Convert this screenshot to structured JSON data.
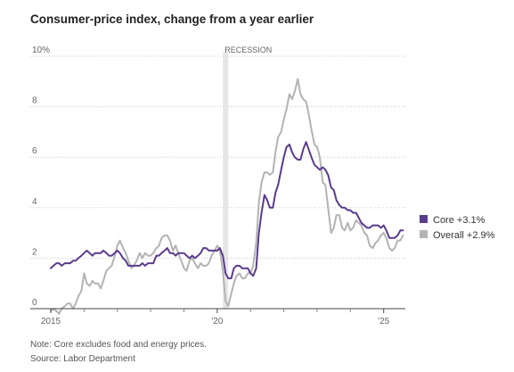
{
  "chart_data": {
    "type": "line",
    "title": "Consumer-price index, change from a year earlier",
    "xlabel": "",
    "ylabel": "",
    "xlim": [
      2015,
      2025.65
    ],
    "ylim": [
      0,
      10
    ],
    "y_ticks": [
      {
        "value": 10,
        "label": "10%"
      },
      {
        "value": 8,
        "label": "8"
      },
      {
        "value": 6,
        "label": "6"
      },
      {
        "value": 4,
        "label": "4"
      },
      {
        "value": 2,
        "label": "2"
      },
      {
        "value": 0,
        "label": "0"
      }
    ],
    "x_tick_labels": [
      {
        "value": 2015,
        "label": "2015"
      },
      {
        "value": 2020,
        "label": "'20"
      },
      {
        "value": 2025,
        "label": "'25"
      }
    ],
    "x_minor_ticks": [
      2016,
      2017,
      2018,
      2019,
      2021,
      2022,
      2023,
      2024
    ],
    "recession": {
      "label": "RECESSION",
      "start": 2020.17,
      "end": 2020.33
    },
    "grid": true,
    "legend_position": "right",
    "series": [
      {
        "name": "Core",
        "legend_label": "Core +3.1%",
        "color": "#5b3b8c",
        "points": [
          [
            2015.0,
            1.6
          ],
          [
            2015.08,
            1.7
          ],
          [
            2015.17,
            1.8
          ],
          [
            2015.25,
            1.8
          ],
          [
            2015.33,
            1.7
          ],
          [
            2015.42,
            1.8
          ],
          [
            2015.5,
            1.8
          ],
          [
            2015.58,
            1.8
          ],
          [
            2015.67,
            1.9
          ],
          [
            2015.75,
            1.9
          ],
          [
            2015.83,
            2.0
          ],
          [
            2015.92,
            2.1
          ],
          [
            2016.0,
            2.2
          ],
          [
            2016.08,
            2.3
          ],
          [
            2016.17,
            2.2
          ],
          [
            2016.25,
            2.1
          ],
          [
            2016.33,
            2.2
          ],
          [
            2016.42,
            2.2
          ],
          [
            2016.5,
            2.2
          ],
          [
            2016.58,
            2.3
          ],
          [
            2016.67,
            2.2
          ],
          [
            2016.75,
            2.1
          ],
          [
            2016.83,
            2.1
          ],
          [
            2016.92,
            2.2
          ],
          [
            2017.0,
            2.3
          ],
          [
            2017.08,
            2.2
          ],
          [
            2017.17,
            2.0
          ],
          [
            2017.25,
            1.9
          ],
          [
            2017.33,
            1.7
          ],
          [
            2017.42,
            1.7
          ],
          [
            2017.5,
            1.7
          ],
          [
            2017.58,
            1.7
          ],
          [
            2017.67,
            1.7
          ],
          [
            2017.75,
            1.8
          ],
          [
            2017.83,
            1.7
          ],
          [
            2017.92,
            1.8
          ],
          [
            2018.0,
            1.8
          ],
          [
            2018.08,
            1.8
          ],
          [
            2018.17,
            2.1
          ],
          [
            2018.25,
            2.1
          ],
          [
            2018.33,
            2.2
          ],
          [
            2018.42,
            2.3
          ],
          [
            2018.5,
            2.4
          ],
          [
            2018.58,
            2.2
          ],
          [
            2018.67,
            2.2
          ],
          [
            2018.75,
            2.1
          ],
          [
            2018.83,
            2.2
          ],
          [
            2018.92,
            2.2
          ],
          [
            2019.0,
            2.2
          ],
          [
            2019.08,
            2.1
          ],
          [
            2019.17,
            2.0
          ],
          [
            2019.25,
            2.1
          ],
          [
            2019.33,
            2.0
          ],
          [
            2019.42,
            2.1
          ],
          [
            2019.5,
            2.2
          ],
          [
            2019.58,
            2.4
          ],
          [
            2019.67,
            2.4
          ],
          [
            2019.75,
            2.3
          ],
          [
            2019.83,
            2.3
          ],
          [
            2019.92,
            2.3
          ],
          [
            2020.0,
            2.3
          ],
          [
            2020.08,
            2.4
          ],
          [
            2020.17,
            2.1
          ],
          [
            2020.25,
            1.4
          ],
          [
            2020.33,
            1.2
          ],
          [
            2020.42,
            1.2
          ],
          [
            2020.5,
            1.6
          ],
          [
            2020.58,
            1.7
          ],
          [
            2020.67,
            1.7
          ],
          [
            2020.75,
            1.6
          ],
          [
            2020.83,
            1.6
          ],
          [
            2020.92,
            1.6
          ],
          [
            2021.0,
            1.4
          ],
          [
            2021.08,
            1.3
          ],
          [
            2021.17,
            1.6
          ],
          [
            2021.25,
            3.0
          ],
          [
            2021.33,
            3.8
          ],
          [
            2021.42,
            4.5
          ],
          [
            2021.5,
            4.3
          ],
          [
            2021.58,
            4.0
          ],
          [
            2021.67,
            4.0
          ],
          [
            2021.75,
            4.6
          ],
          [
            2021.83,
            4.9
          ],
          [
            2021.92,
            5.5
          ],
          [
            2022.0,
            6.0
          ],
          [
            2022.08,
            6.4
          ],
          [
            2022.17,
            6.5
          ],
          [
            2022.25,
            6.2
          ],
          [
            2022.33,
            6.0
          ],
          [
            2022.42,
            5.9
          ],
          [
            2022.5,
            5.9
          ],
          [
            2022.58,
            6.3
          ],
          [
            2022.67,
            6.6
          ],
          [
            2022.75,
            6.3
          ],
          [
            2022.83,
            6.0
          ],
          [
            2022.92,
            5.7
          ],
          [
            2023.0,
            5.6
          ],
          [
            2023.08,
            5.5
          ],
          [
            2023.17,
            5.6
          ],
          [
            2023.25,
            5.5
          ],
          [
            2023.33,
            5.3
          ],
          [
            2023.42,
            4.8
          ],
          [
            2023.5,
            4.7
          ],
          [
            2023.58,
            4.3
          ],
          [
            2023.67,
            4.1
          ],
          [
            2023.75,
            4.0
          ],
          [
            2023.83,
            4.0
          ],
          [
            2023.92,
            3.9
          ],
          [
            2024.0,
            3.9
          ],
          [
            2024.08,
            3.8
          ],
          [
            2024.17,
            3.8
          ],
          [
            2024.25,
            3.6
          ],
          [
            2024.33,
            3.4
          ],
          [
            2024.42,
            3.3
          ],
          [
            2024.5,
            3.2
          ],
          [
            2024.58,
            3.2
          ],
          [
            2024.67,
            3.3
          ],
          [
            2024.75,
            3.3
          ],
          [
            2024.83,
            3.3
          ],
          [
            2024.92,
            3.2
          ],
          [
            2025.0,
            3.3
          ],
          [
            2025.08,
            3.1
          ],
          [
            2025.17,
            2.8
          ],
          [
            2025.25,
            2.8
          ],
          [
            2025.33,
            2.8
          ],
          [
            2025.42,
            2.9
          ],
          [
            2025.5,
            3.1
          ],
          [
            2025.58,
            3.1
          ]
        ]
      },
      {
        "name": "Overall",
        "legend_label": "Overall +2.9%",
        "color": "#b3b3b3",
        "points": [
          [
            2015.0,
            -0.1
          ],
          [
            2015.08,
            0.0
          ],
          [
            2015.17,
            -0.1
          ],
          [
            2015.25,
            -0.2
          ],
          [
            2015.33,
            0.0
          ],
          [
            2015.42,
            0.1
          ],
          [
            2015.5,
            0.2
          ],
          [
            2015.58,
            0.2
          ],
          [
            2015.67,
            0.0
          ],
          [
            2015.75,
            0.2
          ],
          [
            2015.83,
            0.5
          ],
          [
            2015.92,
            0.7
          ],
          [
            2016.0,
            1.4
          ],
          [
            2016.08,
            1.0
          ],
          [
            2016.17,
            0.9
          ],
          [
            2016.25,
            1.1
          ],
          [
            2016.33,
            1.0
          ],
          [
            2016.42,
            1.0
          ],
          [
            2016.5,
            0.8
          ],
          [
            2016.58,
            1.1
          ],
          [
            2016.67,
            1.5
          ],
          [
            2016.75,
            1.6
          ],
          [
            2016.83,
            1.7
          ],
          [
            2016.92,
            2.1
          ],
          [
            2017.0,
            2.5
          ],
          [
            2017.08,
            2.7
          ],
          [
            2017.17,
            2.4
          ],
          [
            2017.25,
            2.2
          ],
          [
            2017.33,
            1.9
          ],
          [
            2017.42,
            1.6
          ],
          [
            2017.5,
            1.7
          ],
          [
            2017.58,
            1.9
          ],
          [
            2017.67,
            2.2
          ],
          [
            2017.75,
            2.0
          ],
          [
            2017.83,
            2.2
          ],
          [
            2017.92,
            2.1
          ],
          [
            2018.0,
            2.1
          ],
          [
            2018.08,
            2.2
          ],
          [
            2018.17,
            2.4
          ],
          [
            2018.25,
            2.5
          ],
          [
            2018.33,
            2.8
          ],
          [
            2018.42,
            2.9
          ],
          [
            2018.5,
            2.9
          ],
          [
            2018.58,
            2.7
          ],
          [
            2018.67,
            2.3
          ],
          [
            2018.75,
            2.5
          ],
          [
            2018.83,
            2.2
          ],
          [
            2018.92,
            1.9
          ],
          [
            2019.0,
            1.6
          ],
          [
            2019.08,
            1.5
          ],
          [
            2019.17,
            1.9
          ],
          [
            2019.25,
            2.0
          ],
          [
            2019.33,
            1.8
          ],
          [
            2019.42,
            1.6
          ],
          [
            2019.5,
            1.8
          ],
          [
            2019.58,
            1.7
          ],
          [
            2019.67,
            1.7
          ],
          [
            2019.75,
            1.8
          ],
          [
            2019.83,
            2.1
          ],
          [
            2019.92,
            2.3
          ],
          [
            2020.0,
            2.5
          ],
          [
            2020.08,
            2.3
          ],
          [
            2020.17,
            1.5
          ],
          [
            2020.25,
            0.3
          ],
          [
            2020.33,
            0.1
          ],
          [
            2020.42,
            0.6
          ],
          [
            2020.5,
            1.0
          ],
          [
            2020.58,
            1.3
          ],
          [
            2020.67,
            1.4
          ],
          [
            2020.75,
            1.2
          ],
          [
            2020.83,
            1.2
          ],
          [
            2020.92,
            1.4
          ],
          [
            2021.0,
            1.4
          ],
          [
            2021.08,
            1.7
          ],
          [
            2021.17,
            2.6
          ],
          [
            2021.25,
            4.2
          ],
          [
            2021.33,
            5.0
          ],
          [
            2021.42,
            5.4
          ],
          [
            2021.5,
            5.4
          ],
          [
            2021.58,
            5.3
          ],
          [
            2021.67,
            5.4
          ],
          [
            2021.75,
            6.2
          ],
          [
            2021.83,
            6.8
          ],
          [
            2021.92,
            7.0
          ],
          [
            2022.0,
            7.5
          ],
          [
            2022.08,
            7.9
          ],
          [
            2022.17,
            8.5
          ],
          [
            2022.25,
            8.3
          ],
          [
            2022.33,
            8.6
          ],
          [
            2022.42,
            9.1
          ],
          [
            2022.5,
            8.5
          ],
          [
            2022.58,
            8.3
          ],
          [
            2022.67,
            8.2
          ],
          [
            2022.75,
            7.7
          ],
          [
            2022.83,
            7.1
          ],
          [
            2022.92,
            6.5
          ],
          [
            2023.0,
            6.4
          ],
          [
            2023.08,
            6.0
          ],
          [
            2023.17,
            5.0
          ],
          [
            2023.25,
            4.9
          ],
          [
            2023.33,
            4.0
          ],
          [
            2023.42,
            3.0
          ],
          [
            2023.5,
            3.2
          ],
          [
            2023.58,
            3.7
          ],
          [
            2023.67,
            3.7
          ],
          [
            2023.75,
            3.2
          ],
          [
            2023.83,
            3.1
          ],
          [
            2023.92,
            3.4
          ],
          [
            2024.0,
            3.1
          ],
          [
            2024.08,
            3.2
          ],
          [
            2024.17,
            3.5
          ],
          [
            2024.25,
            3.4
          ],
          [
            2024.33,
            3.3
          ],
          [
            2024.42,
            3.0
          ],
          [
            2024.5,
            2.9
          ],
          [
            2024.58,
            2.5
          ],
          [
            2024.67,
            2.4
          ],
          [
            2024.75,
            2.6
          ],
          [
            2024.83,
            2.7
          ],
          [
            2024.92,
            2.9
          ],
          [
            2025.0,
            3.0
          ],
          [
            2025.08,
            2.8
          ],
          [
            2025.17,
            2.4
          ],
          [
            2025.25,
            2.3
          ],
          [
            2025.33,
            2.4
          ],
          [
            2025.42,
            2.7
          ],
          [
            2025.5,
            2.7
          ],
          [
            2025.58,
            2.9
          ]
        ]
      }
    ]
  },
  "notes": {
    "note": "Note: Core excludes food and energy prices.",
    "source": "Source: Labor Department"
  }
}
